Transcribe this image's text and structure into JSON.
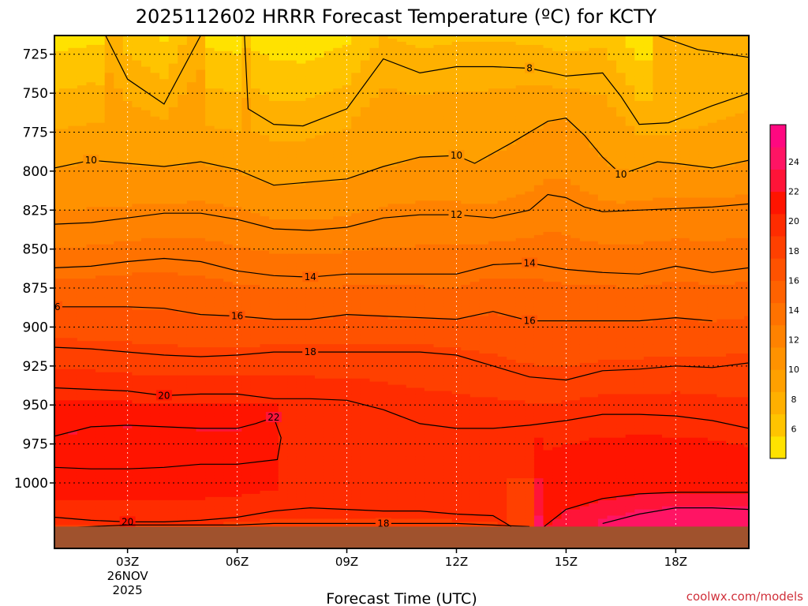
{
  "chart_data": {
    "type": "heatmap",
    "title": "2025112602 HRRR Forecast Temperature (ºC) for KCTY",
    "xlabel": "Forecast Time (UTC)",
    "ylabel": "",
    "credit": "coolwx.com/models",
    "x_hours": [
      1,
      2,
      3,
      4,
      5,
      6,
      7,
      8,
      9,
      10,
      11,
      12,
      13,
      14,
      15,
      16,
      17,
      18,
      19,
      20
    ],
    "xlim": [
      1,
      20
    ],
    "x_ticks": [
      {
        "hour": 3,
        "label": "03Z",
        "sub1": "26NOV",
        "sub2": "2025"
      },
      {
        "hour": 6,
        "label": "06Z",
        "sub1": "",
        "sub2": ""
      },
      {
        "hour": 9,
        "label": "09Z",
        "sub1": "",
        "sub2": ""
      },
      {
        "hour": 12,
        "label": "12Z",
        "sub1": "",
        "sub2": ""
      },
      {
        "hour": 15,
        "label": "15Z",
        "sub1": "",
        "sub2": ""
      },
      {
        "hour": 18,
        "label": "18Z",
        "sub1": "",
        "sub2": ""
      }
    ],
    "y_ticks": [
      725,
      750,
      775,
      800,
      825,
      850,
      875,
      900,
      925,
      950,
      975,
      1000
    ],
    "ylim": [
      1042,
      713
    ],
    "surface_pressure": 1028,
    "colorbar": {
      "ticks": [
        6,
        8,
        10,
        12,
        14,
        16,
        18,
        20,
        22,
        24
      ],
      "colors": [
        "#ffe200",
        "#ffc400",
        "#ffb000",
        "#ffa000",
        "#ff9200",
        "#ff8200",
        "#ff7200",
        "#ff6200",
        "#ff5200",
        "#ff4000",
        "#ff2c00",
        "#ff1400",
        "#ff1438",
        "#ff1464",
        "#ff0880"
      ]
    },
    "contours": [
      {
        "level": 8,
        "points": [
          [
            2.4,
            713
          ],
          [
            3.0,
            741
          ],
          [
            4.0,
            757
          ],
          [
            5.0,
            713
          ]
        ],
        "labels": []
      },
      {
        "level": 8,
        "points": [
          [
            6.2,
            713
          ],
          [
            6.3,
            760
          ],
          [
            7.0,
            770
          ],
          [
            7.8,
            771
          ],
          [
            9.0,
            760
          ],
          [
            10.0,
            728
          ],
          [
            11.0,
            737
          ],
          [
            12.0,
            733
          ],
          [
            13.0,
            733
          ],
          [
            14.0,
            734
          ],
          [
            15.0,
            739
          ],
          [
            16.0,
            737
          ],
          [
            16.5,
            752
          ],
          [
            17.0,
            770
          ],
          [
            17.8,
            769
          ],
          [
            19.0,
            758
          ],
          [
            20.0,
            750
          ]
        ],
        "labels": [
          [
            14.0,
            734
          ]
        ]
      },
      {
        "level": 8,
        "points": [
          [
            17.5,
            713
          ],
          [
            18.6,
            722
          ],
          [
            20.0,
            727
          ]
        ],
        "labels": []
      },
      {
        "level": 10,
        "points": [
          [
            1.0,
            798
          ],
          [
            2.0,
            793
          ],
          [
            3.0,
            795
          ],
          [
            4.0,
            797
          ],
          [
            5.0,
            794
          ],
          [
            6.0,
            799
          ],
          [
            7.0,
            809
          ],
          [
            8.0,
            807
          ],
          [
            9.0,
            805
          ],
          [
            10.0,
            797
          ],
          [
            11.0,
            791
          ],
          [
            12.0,
            790
          ],
          [
            12.5,
            795
          ],
          [
            13.5,
            782
          ],
          [
            14.5,
            768
          ],
          [
            15.0,
            766
          ],
          [
            15.5,
            777
          ],
          [
            16.0,
            791
          ],
          [
            16.5,
            802
          ],
          [
            17.0,
            798
          ],
          [
            17.5,
            794
          ],
          [
            18.0,
            795
          ],
          [
            19.0,
            798
          ],
          [
            20.0,
            793
          ]
        ],
        "labels": [
          [
            2.0,
            793
          ],
          [
            12.0,
            790
          ],
          [
            16.5,
            802
          ]
        ]
      },
      {
        "level": 12,
        "points": [
          [
            1.0,
            834
          ],
          [
            2.0,
            833
          ],
          [
            3.0,
            830
          ],
          [
            4.0,
            827
          ],
          [
            5.0,
            827
          ],
          [
            6.0,
            831
          ],
          [
            7.0,
            837
          ],
          [
            8.0,
            838
          ],
          [
            9.0,
            836
          ],
          [
            10.0,
            830
          ],
          [
            11.0,
            828
          ],
          [
            12.0,
            828
          ],
          [
            13.0,
            830
          ],
          [
            14.0,
            825
          ],
          [
            14.5,
            815
          ],
          [
            15.0,
            817
          ],
          [
            15.5,
            823
          ],
          [
            16.0,
            826
          ],
          [
            17.0,
            825
          ],
          [
            18.0,
            824
          ],
          [
            19.0,
            823
          ],
          [
            20.0,
            821
          ]
        ],
        "labels": [
          [
            12.0,
            828
          ]
        ]
      },
      {
        "level": 14,
        "points": [
          [
            1.0,
            862
          ],
          [
            2.0,
            861
          ],
          [
            3.0,
            858
          ],
          [
            4.0,
            856
          ],
          [
            5.0,
            858
          ],
          [
            6.0,
            864
          ],
          [
            7.0,
            867
          ],
          [
            8.0,
            868
          ],
          [
            9.0,
            866
          ],
          [
            10.0,
            866
          ],
          [
            11.0,
            866
          ],
          [
            12.0,
            866
          ],
          [
            13.0,
            860
          ],
          [
            14.0,
            859
          ],
          [
            15.0,
            863
          ],
          [
            16.0,
            865
          ],
          [
            17.0,
            866
          ],
          [
            18.0,
            861
          ],
          [
            19.0,
            865
          ],
          [
            20.0,
            862
          ]
        ],
        "labels": [
          [
            8.0,
            868
          ],
          [
            14.0,
            859
          ]
        ]
      },
      {
        "level": 16,
        "points": [
          [
            1.0,
            887
          ],
          [
            2.0,
            887
          ],
          [
            3.0,
            887
          ],
          [
            4.0,
            888
          ],
          [
            5.0,
            892
          ],
          [
            6.0,
            893
          ],
          [
            7.0,
            895
          ],
          [
            8.0,
            895
          ],
          [
            9.0,
            892
          ],
          [
            10.0,
            893
          ],
          [
            11.0,
            894
          ],
          [
            12.0,
            895
          ],
          [
            13.0,
            890
          ],
          [
            14.0,
            896
          ],
          [
            15.0,
            896
          ],
          [
            16.0,
            896
          ],
          [
            17.0,
            896
          ],
          [
            18.0,
            894
          ],
          [
            19.0,
            896
          ]
        ],
        "labels": [
          [
            1.0,
            887
          ],
          [
            6.0,
            893
          ],
          [
            14.0,
            896
          ]
        ]
      },
      {
        "level": 18,
        "points": [
          [
            1.0,
            913
          ],
          [
            2.0,
            914
          ],
          [
            3.0,
            916
          ],
          [
            4.0,
            918
          ],
          [
            5.0,
            919
          ],
          [
            6.0,
            918
          ],
          [
            7.0,
            916
          ],
          [
            8.0,
            916
          ],
          [
            9.0,
            916
          ],
          [
            10.0,
            916
          ],
          [
            11.0,
            916
          ],
          [
            12.0,
            918
          ],
          [
            13.0,
            925
          ],
          [
            14.0,
            932
          ],
          [
            15.0,
            934
          ],
          [
            16.0,
            928
          ],
          [
            17.0,
            927
          ],
          [
            18.0,
            925
          ],
          [
            19.0,
            926
          ],
          [
            20.0,
            923
          ]
        ],
        "labels": [
          [
            8.0,
            916
          ]
        ]
      },
      {
        "level": 20,
        "points": [
          [
            1.0,
            939
          ],
          [
            2.0,
            940
          ],
          [
            3.0,
            941
          ],
          [
            4.0,
            944
          ],
          [
            5.0,
            943
          ],
          [
            6.0,
            943
          ],
          [
            7.0,
            946
          ],
          [
            8.0,
            946
          ],
          [
            9.0,
            947
          ],
          [
            10.0,
            953
          ],
          [
            11.0,
            962
          ],
          [
            12.0,
            965
          ],
          [
            13.0,
            965
          ],
          [
            14.0,
            963
          ],
          [
            15.0,
            960
          ],
          [
            16.0,
            956
          ],
          [
            17.0,
            956
          ],
          [
            18.0,
            957
          ],
          [
            19.0,
            960
          ],
          [
            20.0,
            965
          ]
        ],
        "labels": [
          [
            4.0,
            944
          ]
        ]
      },
      {
        "level": 22,
        "points": [
          [
            1.0,
            970
          ],
          [
            2.0,
            964
          ],
          [
            3.0,
            963
          ],
          [
            4.0,
            964
          ],
          [
            5.0,
            965
          ],
          [
            6.0,
            965
          ],
          [
            6.5,
            962
          ],
          [
            7.0,
            958
          ],
          [
            7.2,
            971
          ],
          [
            7.1,
            985
          ],
          [
            6.0,
            988
          ],
          [
            5.0,
            988
          ],
          [
            4.0,
            990
          ],
          [
            3.0,
            991
          ],
          [
            2.0,
            991
          ],
          [
            1.0,
            990
          ]
        ],
        "labels": [
          [
            7.0,
            958
          ]
        ]
      },
      {
        "level": 22,
        "points": [
          [
            14.4,
            1028
          ],
          [
            15.0,
            1017
          ],
          [
            16.0,
            1010
          ],
          [
            17.0,
            1007
          ],
          [
            18.0,
            1006
          ],
          [
            19.0,
            1006
          ],
          [
            20.0,
            1006
          ]
        ],
        "labels": []
      },
      {
        "level": 24,
        "points": [
          [
            16.0,
            1026
          ],
          [
            17.0,
            1020
          ],
          [
            18.0,
            1016
          ],
          [
            19.0,
            1016
          ],
          [
            20.0,
            1017
          ]
        ],
        "labels": []
      },
      {
        "level": 20,
        "points": [
          [
            1.0,
            1022
          ],
          [
            2.0,
            1024
          ],
          [
            3.0,
            1025
          ],
          [
            4.0,
            1025
          ],
          [
            5.0,
            1024
          ],
          [
            6.0,
            1022
          ],
          [
            7.0,
            1018
          ],
          [
            8.0,
            1016
          ],
          [
            9.0,
            1017
          ],
          [
            10.0,
            1018
          ],
          [
            11.0,
            1018
          ],
          [
            12.0,
            1020
          ],
          [
            13.0,
            1021
          ],
          [
            13.5,
            1028
          ]
        ],
        "labels": [
          [
            3.0,
            1025
          ]
        ]
      },
      {
        "level": 18,
        "points": [
          [
            1.0,
            1029
          ],
          [
            2.0,
            1028
          ],
          [
            3.0,
            1027
          ],
          [
            4.0,
            1027
          ],
          [
            5.0,
            1027
          ],
          [
            6.0,
            1027
          ],
          [
            7.0,
            1026
          ],
          [
            8.0,
            1026
          ],
          [
            9.0,
            1026
          ],
          [
            10.0,
            1026
          ],
          [
            11.0,
            1026
          ],
          [
            12.0,
            1026
          ],
          [
            13.0,
            1027
          ],
          [
            14.0,
            1028
          ]
        ],
        "labels": [
          [
            10.0,
            1026
          ]
        ]
      }
    ]
  }
}
